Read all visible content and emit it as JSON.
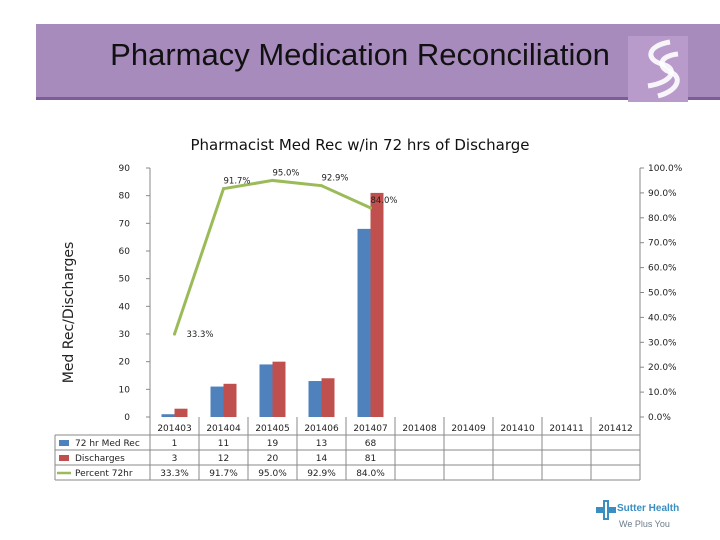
{
  "header": {
    "title": "Pharmacy Medication Reconciliation"
  },
  "brand": {
    "name": "Sutter Health",
    "tagline": "We Plus You"
  },
  "chart_data": {
    "type": "bar",
    "title": "Pharmacist Med Rec w/in 72 hrs of Discharge",
    "ylabel": "Med Rec/Discharges",
    "ylim": [
      0,
      90
    ],
    "y_ticks": [
      0,
      10,
      20,
      30,
      40,
      50,
      60,
      70,
      80,
      90
    ],
    "y2lim": [
      0,
      100
    ],
    "y2_ticks": [
      "0.0%",
      "10.0%",
      "20.0%",
      "30.0%",
      "40.0%",
      "50.0%",
      "60.0%",
      "70.0%",
      "80.0%",
      "90.0%",
      "100.0%"
    ],
    "categories": [
      "201403",
      "201404",
      "201405",
      "201406",
      "201407",
      "201408",
      "201409",
      "201410",
      "201411",
      "201412"
    ],
    "series": [
      {
        "name": "72 hr Med Rec",
        "type": "bar",
        "axis": "left",
        "color": "#4f81bd",
        "values": [
          1,
          11,
          19,
          13,
          68,
          null,
          null,
          null,
          null,
          null
        ],
        "labels": [
          "1",
          "11",
          "19",
          "13",
          "68",
          "",
          "",
          "",
          "",
          ""
        ]
      },
      {
        "name": "Discharges",
        "type": "bar",
        "axis": "left",
        "color": "#c0504d",
        "values": [
          3,
          12,
          20,
          14,
          81,
          null,
          null,
          null,
          null,
          null
        ],
        "labels": [
          "3",
          "12",
          "20",
          "14",
          "81",
          "",
          "",
          "",
          "",
          ""
        ]
      },
      {
        "name": "Percent 72hr",
        "type": "line",
        "axis": "right",
        "color": "#9bbb59",
        "values": [
          33.3,
          91.7,
          95.0,
          92.9,
          84.0,
          null,
          null,
          null,
          null,
          null
        ],
        "labels": [
          "33.3%",
          "91.7%",
          "95.0%",
          "92.9%",
          "84.0%",
          "",
          "",
          "",
          "",
          ""
        ]
      }
    ],
    "legend": "table-bottom",
    "grid": false
  }
}
